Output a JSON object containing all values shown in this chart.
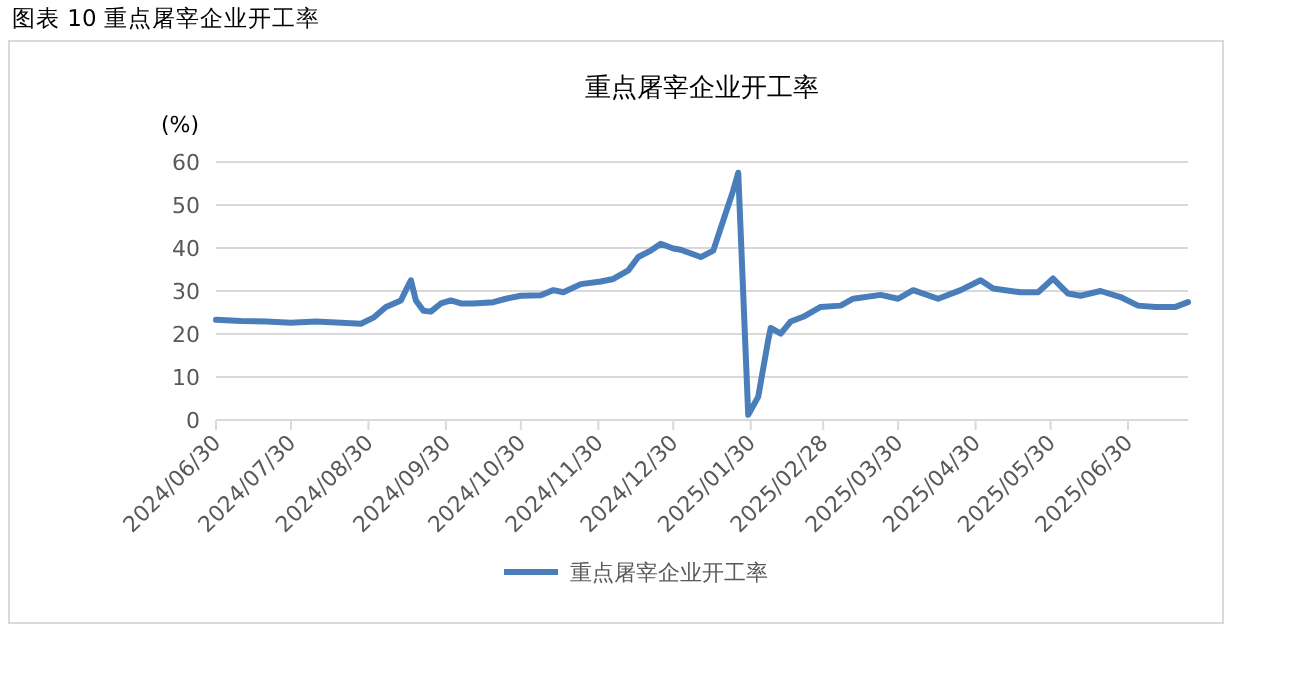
{
  "chart_data": {
    "type": "line",
    "title": "重点屠宰企业开工率",
    "ylabel": "(%)",
    "annotations": [
      "图表 10  重点屠宰企业开工率"
    ],
    "x": [
      "2024-06-30",
      "2024-07-10",
      "2024-07-20",
      "2024-07-30",
      "2024-08-09",
      "2024-08-19",
      "2024-08-27",
      "2024-09-01",
      "2024-09-06",
      "2024-09-12",
      "2024-09-14",
      "2024-09-16",
      "2024-09-18",
      "2024-09-21",
      "2024-09-24",
      "2024-09-28",
      "2024-10-02",
      "2024-10-06",
      "2024-10-11",
      "2024-10-19",
      "2024-10-24",
      "2024-10-30",
      "2024-11-07",
      "2024-11-12",
      "2024-11-16",
      "2024-11-23",
      "2024-12-01",
      "2024-12-06",
      "2024-12-12",
      "2024-12-16",
      "2024-12-21",
      "2024-12-25",
      "2024-12-30",
      "2025-01-02",
      "2025-01-10",
      "2025-01-15",
      "2025-01-19",
      "2025-01-23",
      "2025-01-25",
      "2025-01-29",
      "2025-02-02",
      "2025-02-06",
      "2025-02-07",
      "2025-02-11",
      "2025-02-15",
      "2025-02-20",
      "2025-02-27",
      "2025-03-07",
      "2025-03-12",
      "2025-03-23",
      "2025-03-30",
      "2025-04-05",
      "2025-04-15",
      "2025-04-24",
      "2025-05-02",
      "2025-05-07",
      "2025-05-18",
      "2025-05-25",
      "2025-05-31",
      "2025-06-06",
      "2025-06-11",
      "2025-06-19",
      "2025-06-27",
      "2025-07-04",
      "2025-07-11",
      "2025-07-19",
      "2025-07-24"
    ],
    "series": [
      {
        "name": "重点屠宰企业开工率",
        "color": "#4a7ebb",
        "values": [
          23.3,
          23.0,
          22.9,
          22.6,
          22.9,
          22.6,
          22.4,
          23.8,
          26.3,
          27.8,
          30.2,
          32.5,
          27.8,
          25.4,
          25.2,
          27.1,
          27.8,
          27.1,
          27.1,
          27.4,
          28.2,
          28.9,
          29.0,
          30.2,
          29.7,
          31.6,
          32.2,
          32.8,
          34.8,
          37.9,
          39.4,
          41.0,
          39.9,
          39.6,
          37.9,
          39.4,
          46.4,
          53.4,
          57.5,
          1.2,
          5.4,
          18.6,
          21.4,
          20.1,
          22.9,
          24.0,
          26.3,
          26.6,
          28.2,
          29.1,
          28.2,
          30.2,
          28.2,
          30.2,
          32.5,
          30.6,
          29.7,
          29.7,
          32.9,
          29.4,
          28.9,
          30.0,
          28.6,
          26.6,
          26.3,
          26.3,
          27.4
        ]
      }
    ],
    "xlim": [
      "2024-06-30",
      "2025-07-24"
    ],
    "xticks": [
      {
        "value": "2024-06-30",
        "label": "2024/06/30"
      },
      {
        "value": "2024-07-30",
        "label": "2024/07/30"
      },
      {
        "value": "2024-08-30",
        "label": "2024/08/30"
      },
      {
        "value": "2024-09-30",
        "label": "2024/09/30"
      },
      {
        "value": "2024-10-30",
        "label": "2024/10/30"
      },
      {
        "value": "2024-11-30",
        "label": "2024/11/30"
      },
      {
        "value": "2024-12-30",
        "label": "2024/12/30"
      },
      {
        "value": "2025-01-30",
        "label": "2025/01/30"
      },
      {
        "value": "2025-02-28",
        "label": "2025/02/28"
      },
      {
        "value": "2025-03-30",
        "label": "2025/03/30"
      },
      {
        "value": "2025-04-30",
        "label": "2025/04/30"
      },
      {
        "value": "2025-05-30",
        "label": "2025/05/30"
      },
      {
        "value": "2025-06-30",
        "label": "2025/06/30"
      }
    ],
    "ylim": [
      0,
      60
    ],
    "yticks": [
      0,
      10,
      20,
      30,
      40,
      50,
      60
    ],
    "grid": "y",
    "legend": "bottom",
    "marker": "none",
    "line_style": "solid"
  }
}
